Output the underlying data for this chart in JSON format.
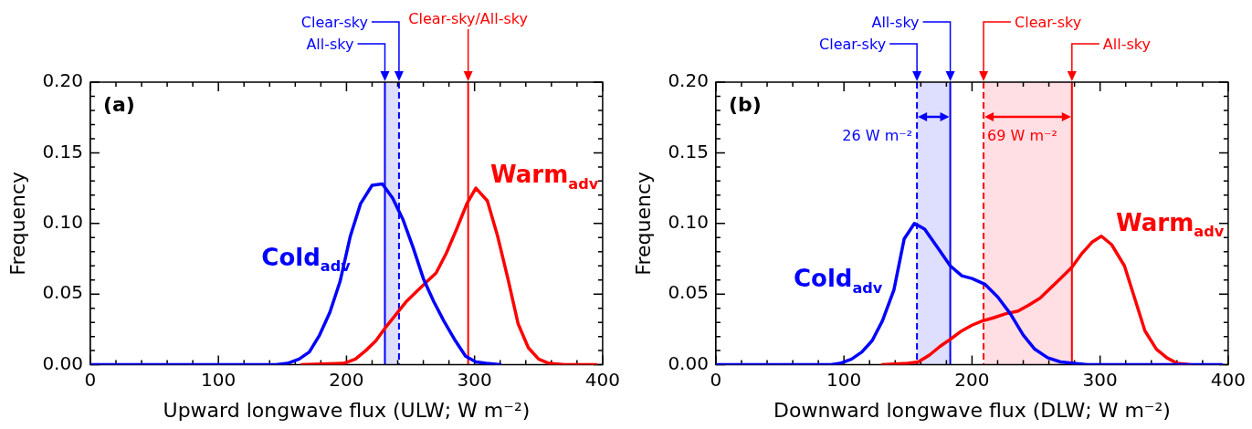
{
  "chart_data": [
    {
      "type": "line",
      "xlabel": "Upward longwave flux (ULW; W m⁻²)",
      "ylabel": "Frequency",
      "annotations": [
        "(a)"
      ],
      "grid": false,
      "legend": false,
      "marker": "none",
      "line_style": "solid",
      "xlim": [
        0,
        400
      ],
      "ylim": [
        0,
        0.2
      ],
      "xticks": [
        0,
        {
          "value": 20,
          "label": null
        },
        {
          "value": 40,
          "label": null
        },
        {
          "value": 60,
          "label": null
        },
        {
          "value": 80,
          "label": null
        },
        100,
        {
          "value": 120,
          "label": null
        },
        {
          "value": 140,
          "label": null
        },
        {
          "value": 160,
          "label": null
        },
        {
          "value": 180,
          "label": null
        },
        200,
        {
          "value": 220,
          "label": null
        },
        {
          "value": 240,
          "label": null
        },
        {
          "value": 260,
          "label": null
        },
        {
          "value": 280,
          "label": null
        },
        300,
        {
          "value": 320,
          "label": null
        },
        {
          "value": 340,
          "label": null
        },
        {
          "value": 360,
          "label": null
        },
        {
          "value": 380,
          "label": null
        },
        400
      ],
      "yticks": [
        {
          "value": 0,
          "label": "0.00"
        },
        {
          "value": 0.01,
          "label": null
        },
        {
          "value": 0.02,
          "label": null
        },
        {
          "value": 0.03,
          "label": null
        },
        {
          "value": 0.04,
          "label": null
        },
        {
          "value": 0.05,
          "label": "0.05"
        },
        {
          "value": 0.06,
          "label": null
        },
        {
          "value": 0.07,
          "label": null
        },
        {
          "value": 0.08,
          "label": null
        },
        {
          "value": 0.09,
          "label": null
        },
        {
          "value": 0.1,
          "label": "0.10"
        },
        {
          "value": 0.11,
          "label": null
        },
        {
          "value": 0.12,
          "label": null
        },
        {
          "value": 0.13,
          "label": null
        },
        {
          "value": 0.14,
          "label": null
        },
        {
          "value": 0.15,
          "label": "0.15"
        },
        {
          "value": 0.16,
          "label": null
        },
        {
          "value": 0.17,
          "label": null
        },
        {
          "value": 0.18,
          "label": null
        },
        {
          "value": 0.19,
          "label": null
        },
        {
          "value": 0.2,
          "label": "0.20"
        }
      ],
      "series": [
        {
          "name": "Cold$_{adv}$",
          "color": "#0000ff",
          "x": [
            0,
            145,
            154,
            163,
            171,
            179,
            187,
            195,
            203,
            211,
            220,
            228,
            236,
            244,
            252,
            260,
            268,
            276,
            285,
            293,
            301,
            309,
            320
          ],
          "values": [
            0,
            0,
            0.001,
            0.004,
            0.009,
            0.021,
            0.037,
            0.059,
            0.091,
            0.114,
            0.127,
            0.128,
            0.118,
            0.103,
            0.083,
            0.061,
            0.045,
            0.031,
            0.017,
            0.006,
            0.002,
            0.001,
            0
          ]
        },
        {
          "name": "Warm$_{adv}$",
          "color": "#ff0000",
          "x": [
            165,
            198,
            207,
            215,
            223,
            231,
            239,
            247,
            255,
            263,
            270,
            278,
            286,
            294,
            301,
            310,
            318,
            326,
            334,
            342,
            350,
            358,
            370,
            395
          ],
          "values": [
            0,
            0.001,
            0.004,
            0.01,
            0.017,
            0.027,
            0.036,
            0.045,
            0.052,
            0.059,
            0.065,
            0.079,
            0.096,
            0.114,
            0.125,
            0.116,
            0.091,
            0.061,
            0.029,
            0.012,
            0.004,
            0.001,
            0,
            0
          ]
        }
      ],
      "ref_lines": [
        {
          "axis": "x",
          "value": 230,
          "label": "All-sky",
          "color": "#0000ff",
          "line_style": "solid"
        },
        {
          "axis": "x",
          "value": 241,
          "label": "Clear-sky",
          "color": "#0000ff",
          "line_style": "dashed"
        },
        {
          "axis": "x",
          "value": 295,
          "label": "Clear-sky/All-sky",
          "color": "#ff0000",
          "line_style": "solid"
        }
      ],
      "bands": [
        {
          "axis": "x",
          "from": 230,
          "to": 241,
          "color": "#c8c8ff"
        }
      ]
    },
    {
      "type": "line",
      "xlabel": "Downward longwave flux (DLW; W m⁻²)",
      "ylabel": "Frequency",
      "annotations": [
        "(b)"
      ],
      "grid": false,
      "legend": false,
      "marker": "none",
      "line_style": "solid",
      "xlim": [
        0,
        400
      ],
      "ylim": [
        0,
        0.2
      ],
      "xticks": [
        0,
        {
          "value": 20,
          "label": null
        },
        {
          "value": 40,
          "label": null
        },
        {
          "value": 60,
          "label": null
        },
        {
          "value": 80,
          "label": null
        },
        100,
        {
          "value": 120,
          "label": null
        },
        {
          "value": 140,
          "label": null
        },
        {
          "value": 160,
          "label": null
        },
        {
          "value": 180,
          "label": null
        },
        200,
        {
          "value": 220,
          "label": null
        },
        {
          "value": 240,
          "label": null
        },
        {
          "value": 260,
          "label": null
        },
        {
          "value": 280,
          "label": null
        },
        300,
        {
          "value": 320,
          "label": null
        },
        {
          "value": 340,
          "label": null
        },
        {
          "value": 360,
          "label": null
        },
        {
          "value": 380,
          "label": null
        },
        400
      ],
      "yticks": [
        {
          "value": 0,
          "label": "0.00"
        },
        {
          "value": 0.01,
          "label": null
        },
        {
          "value": 0.02,
          "label": null
        },
        {
          "value": 0.03,
          "label": null
        },
        {
          "value": 0.04,
          "label": null
        },
        {
          "value": 0.05,
          "label": "0.05"
        },
        {
          "value": 0.06,
          "label": null
        },
        {
          "value": 0.07,
          "label": null
        },
        {
          "value": 0.08,
          "label": null
        },
        {
          "value": 0.09,
          "label": null
        },
        {
          "value": 0.1,
          "label": "0.10"
        },
        {
          "value": 0.11,
          "label": null
        },
        {
          "value": 0.12,
          "label": null
        },
        {
          "value": 0.13,
          "label": null
        },
        {
          "value": 0.14,
          "label": null
        },
        {
          "value": 0.15,
          "label": "0.15"
        },
        {
          "value": 0.16,
          "label": null
        },
        {
          "value": 0.17,
          "label": null
        },
        {
          "value": 0.18,
          "label": null
        },
        {
          "value": 0.19,
          "label": null
        },
        {
          "value": 0.2,
          "label": "0.20"
        }
      ],
      "series": [
        {
          "name": "Cold$_{adv}$",
          "color": "#0000ff",
          "x": [
            0,
            90,
            97,
            106,
            114,
            122,
            130,
            139,
            147,
            155,
            163,
            173,
            183,
            192,
            200,
            210,
            220,
            230,
            240,
            249,
            259,
            269,
            279,
            290,
            395
          ],
          "values": [
            0,
            0,
            0.001,
            0.004,
            0.009,
            0.017,
            0.031,
            0.053,
            0.089,
            0.1,
            0.096,
            0.083,
            0.07,
            0.063,
            0.061,
            0.057,
            0.048,
            0.036,
            0.021,
            0.011,
            0.005,
            0.002,
            0.001,
            0,
            0
          ]
        },
        {
          "name": "Warm$_{adv}$",
          "color": "#ff0000",
          "x": [
            130,
            150,
            158,
            167,
            175,
            183,
            192,
            200,
            208,
            216,
            226,
            236,
            244,
            253,
            261,
            269,
            278,
            286,
            294,
            301,
            309,
            319,
            327,
            335,
            344,
            352,
            360,
            370
          ],
          "values": [
            0,
            0.001,
            0.002,
            0.007,
            0.013,
            0.018,
            0.024,
            0.028,
            0.031,
            0.033,
            0.036,
            0.038,
            0.042,
            0.047,
            0.054,
            0.061,
            0.069,
            0.079,
            0.087,
            0.091,
            0.085,
            0.07,
            0.047,
            0.024,
            0.011,
            0.005,
            0.001,
            0
          ]
        }
      ],
      "ref_lines": [
        {
          "axis": "x",
          "value": 157,
          "label": "Clear-sky",
          "color": "#0000ff",
          "line_style": "dashed"
        },
        {
          "axis": "x",
          "value": 183,
          "label": "All-sky",
          "color": "#0000ff",
          "line_style": "solid"
        },
        {
          "axis": "x",
          "value": 209,
          "label": "Clear-sky",
          "color": "#ff0000",
          "line_style": "dashed"
        },
        {
          "axis": "x",
          "value": 278,
          "label": "All-sky",
          "color": "#ff0000",
          "line_style": "solid"
        }
      ],
      "bands": [
        {
          "axis": "x",
          "from": 157,
          "to": 183,
          "label": "26 W m⁻²",
          "color": "#c8c8ff"
        },
        {
          "axis": "x",
          "from": 209,
          "to": 278,
          "label": "69 W m⁻²",
          "color": "#ffc8d2"
        }
      ]
    }
  ]
}
